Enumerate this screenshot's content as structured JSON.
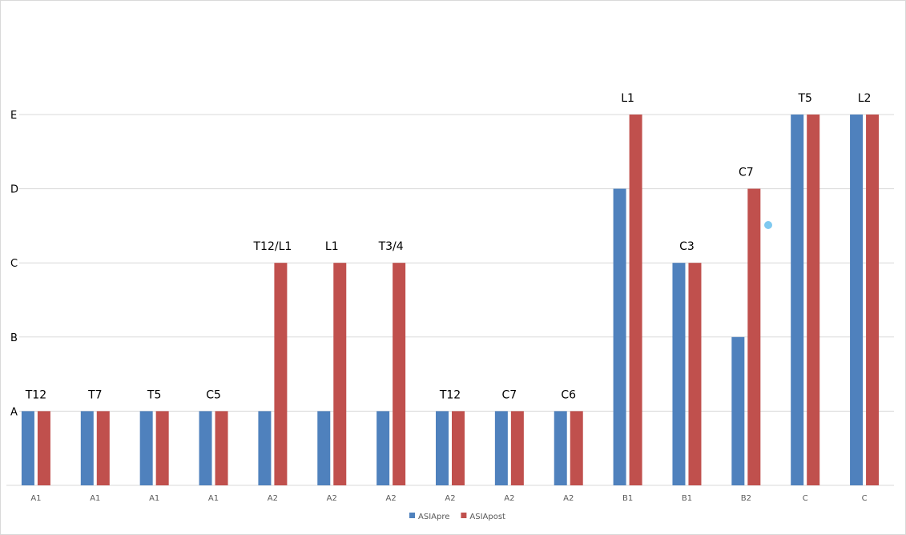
{
  "chart_data": {
    "type": "bar",
    "title": "",
    "xlabel": "",
    "ylabel": "",
    "y_categories": [
      "A",
      "B",
      "C",
      "D",
      "E"
    ],
    "categories": [
      "A1",
      "A1",
      "A1",
      "A1",
      "A2",
      "A2",
      "A2",
      "A2",
      "A2",
      "A2",
      "B1",
      "B1",
      "B2",
      "C",
      "C"
    ],
    "series": [
      {
        "name": "ASIApre",
        "color": "#4f81bd",
        "values": [
          "A",
          "A",
          "A",
          "A",
          "A",
          "A",
          "A",
          "A",
          "A",
          "A",
          "D",
          "C",
          "B",
          "E",
          "E"
        ]
      },
      {
        "name": "ASIApost",
        "color": "#c0504d",
        "values": [
          "A",
          "A",
          "A",
          "A",
          "C",
          "C",
          "C",
          "A",
          "A",
          "A",
          "E",
          "C",
          "D",
          "E",
          "E"
        ]
      }
    ],
    "data_labels": [
      "T12",
      "T7",
      "T5",
      "C5",
      "T12/L1",
      "L1",
      "T3/4",
      "T12",
      "C7",
      "C6",
      "L1",
      "C3",
      "C7",
      "T5",
      "L2"
    ],
    "grid": true,
    "legend_position": "bottom"
  }
}
